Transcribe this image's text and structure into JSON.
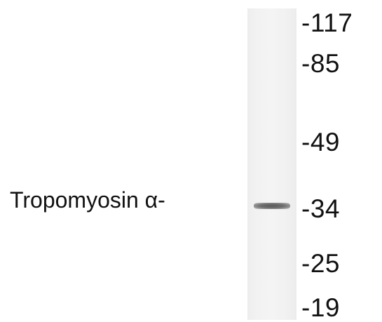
{
  "blot": {
    "band_label": "Tropomyosin α-",
    "markers": [
      {
        "label": "-117"
      },
      {
        "label": "-85"
      },
      {
        "label": "-49"
      },
      {
        "label": "-34"
      },
      {
        "label": "-25"
      },
      {
        "label": "-19"
      }
    ]
  },
  "colors": {
    "background": "#ffffff",
    "lane": "#f2f2f2",
    "band": "#5a5a5a",
    "text": "#111111"
  }
}
